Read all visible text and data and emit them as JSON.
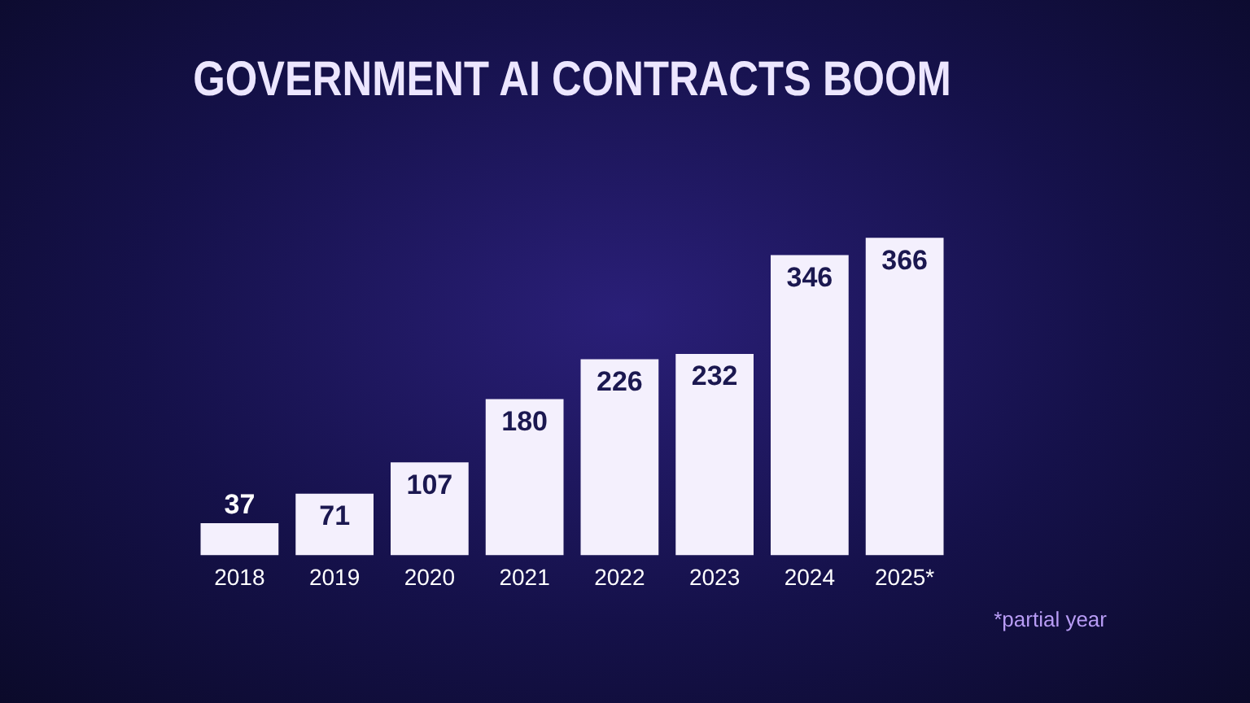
{
  "chart_data": {
    "type": "bar",
    "title": "GOVERNMENT AI CONTRACTS BOOM",
    "categories": [
      "2018",
      "2019",
      "2020",
      "2021",
      "2022",
      "2023",
      "2024",
      "2025*"
    ],
    "values": [
      37,
      71,
      107,
      180,
      226,
      232,
      346,
      366
    ],
    "color": "#f4f0fd",
    "data_labels": true,
    "grid": false,
    "legend": false,
    "annotations": [
      "*partial year"
    ]
  }
}
